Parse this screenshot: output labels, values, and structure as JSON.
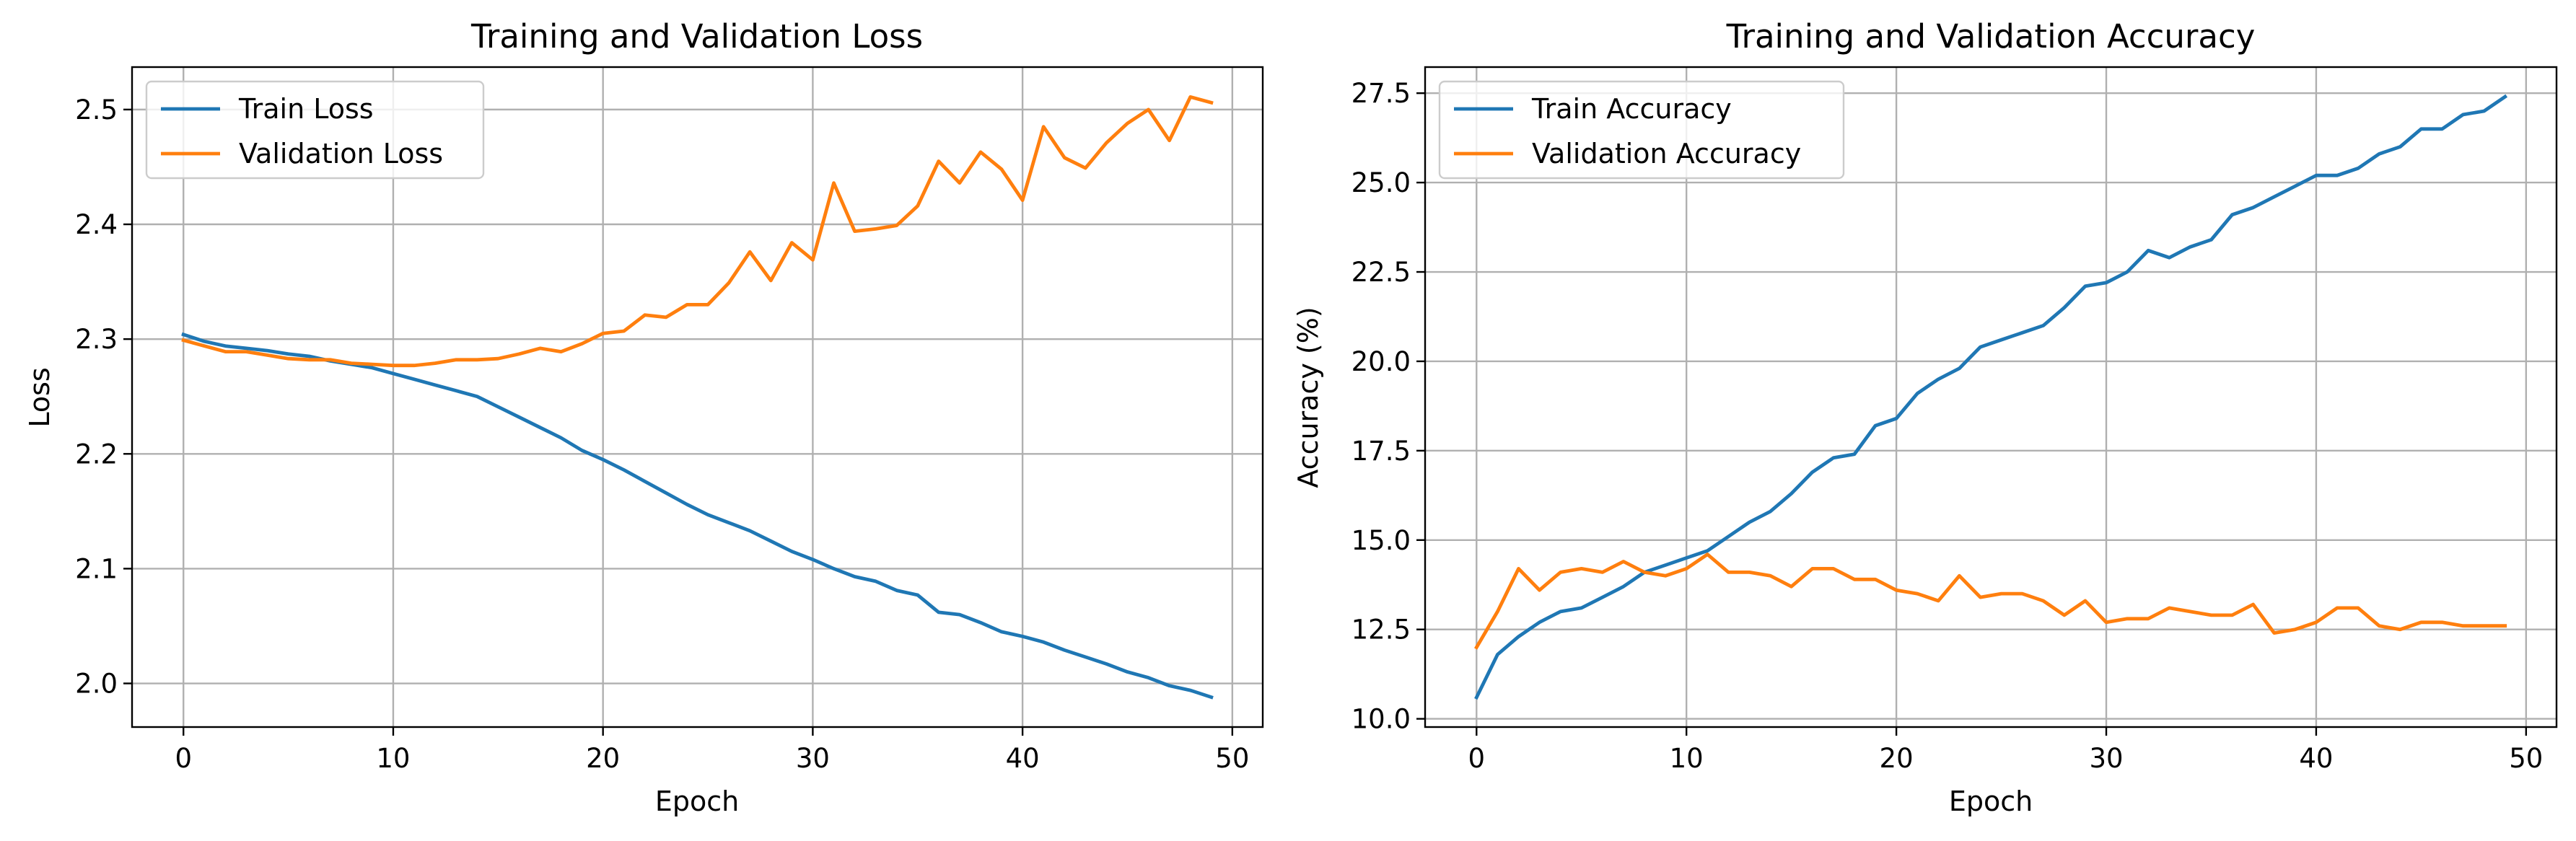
{
  "chart_data": [
    {
      "type": "line",
      "title": "Training and Validation Loss",
      "xlabel": "Epoch",
      "ylabel": "Loss",
      "xlim": [
        -2.45,
        51.45
      ],
      "ylim": [
        1.962,
        2.537
      ],
      "xticks": [
        0,
        10,
        20,
        30,
        40,
        50
      ],
      "yticks": [
        2.0,
        2.1,
        2.2,
        2.3,
        2.4,
        2.5
      ],
      "ytick_decimals": 1,
      "grid": true,
      "legend": "top-left",
      "x": [
        0,
        1,
        2,
        3,
        4,
        5,
        6,
        7,
        8,
        9,
        10,
        11,
        12,
        13,
        14,
        15,
        16,
        17,
        18,
        19,
        20,
        21,
        22,
        23,
        24,
        25,
        26,
        27,
        28,
        29,
        30,
        31,
        32,
        33,
        34,
        35,
        36,
        37,
        38,
        39,
        40,
        41,
        42,
        43,
        44,
        45,
        46,
        47,
        48,
        49
      ],
      "series": [
        {
          "name": "Train Loss",
          "color": "#1f77b4",
          "values": [
            2.304,
            2.298,
            2.294,
            2.292,
            2.29,
            2.287,
            2.285,
            2.281,
            2.278,
            2.275,
            2.27,
            2.265,
            2.26,
            2.255,
            2.25,
            2.241,
            2.232,
            2.223,
            2.214,
            2.203,
            2.195,
            2.186,
            2.176,
            2.166,
            2.156,
            2.147,
            2.14,
            2.133,
            2.124,
            2.115,
            2.108,
            2.1,
            2.093,
            2.089,
            2.081,
            2.077,
            2.062,
            2.06,
            2.053,
            2.045,
            2.041,
            2.036,
            2.029,
            2.023,
            2.017,
            2.01,
            2.005,
            1.998,
            1.994,
            1.988
          ]
        },
        {
          "name": "Validation Loss",
          "color": "#ff7f0e",
          "values": [
            2.299,
            2.294,
            2.289,
            2.289,
            2.286,
            2.283,
            2.282,
            2.282,
            2.279,
            2.278,
            2.277,
            2.277,
            2.279,
            2.282,
            2.282,
            2.283,
            2.287,
            2.292,
            2.289,
            2.296,
            2.305,
            2.307,
            2.321,
            2.319,
            2.33,
            2.33,
            2.349,
            2.376,
            2.351,
            2.384,
            2.369,
            2.436,
            2.394,
            2.396,
            2.399,
            2.416,
            2.455,
            2.436,
            2.463,
            2.448,
            2.421,
            2.485,
            2.458,
            2.449,
            2.471,
            2.488,
            2.5,
            2.473,
            2.511,
            2.506
          ]
        }
      ]
    },
    {
      "type": "line",
      "title": "Training and Validation Accuracy",
      "xlabel": "Epoch",
      "ylabel": "Accuracy (%)",
      "xlimits": [
        -2.45,
        51.45
      ],
      "ylim": [
        9.77,
        28.23
      ],
      "xticks": [
        0,
        10,
        20,
        30,
        40,
        50
      ],
      "yticks": [
        10.0,
        12.5,
        15.0,
        17.5,
        20.0,
        22.5,
        25.0,
        27.5
      ],
      "ytick_decimals": 1,
      "grid": true,
      "legend": "top-left",
      "x": [
        0,
        1,
        2,
        3,
        4,
        5,
        6,
        7,
        8,
        9,
        10,
        11,
        12,
        13,
        14,
        15,
        16,
        17,
        18,
        19,
        20,
        21,
        22,
        23,
        24,
        25,
        26,
        27,
        28,
        29,
        30,
        31,
        32,
        33,
        34,
        35,
        36,
        37,
        38,
        39,
        40,
        41,
        42,
        43,
        44,
        45,
        46,
        47,
        48,
        49
      ],
      "series": [
        {
          "name": "Train Accuracy",
          "color": "#1f77b4",
          "values": [
            10.6,
            11.8,
            12.3,
            12.7,
            13.0,
            13.1,
            13.4,
            13.7,
            14.1,
            14.3,
            14.5,
            14.7,
            15.1,
            15.5,
            15.8,
            16.3,
            16.9,
            17.3,
            17.4,
            18.2,
            18.4,
            19.1,
            19.5,
            19.8,
            20.4,
            20.6,
            20.8,
            21.0,
            21.5,
            22.1,
            22.2,
            22.5,
            23.1,
            22.9,
            23.2,
            23.4,
            24.1,
            24.3,
            24.6,
            24.9,
            25.2,
            25.2,
            25.4,
            25.8,
            26.0,
            26.5,
            26.5,
            26.9,
            27.0,
            27.4
          ]
        },
        {
          "name": "Validation Accuracy",
          "color": "#ff7f0e",
          "values": [
            12.0,
            13.0,
            14.2,
            13.6,
            14.1,
            14.2,
            14.1,
            14.4,
            14.1,
            14.0,
            14.2,
            14.6,
            14.1,
            14.1,
            14.0,
            13.7,
            14.2,
            14.2,
            13.9,
            13.9,
            13.6,
            13.5,
            13.3,
            14.0,
            13.4,
            13.5,
            13.5,
            13.3,
            12.9,
            13.3,
            12.7,
            12.8,
            12.8,
            13.1,
            13.0,
            12.9,
            12.9,
            13.2,
            12.4,
            12.5,
            12.7,
            13.1,
            13.1,
            12.6,
            12.5,
            12.7,
            12.7,
            12.6,
            12.6,
            12.6
          ]
        }
      ]
    }
  ]
}
